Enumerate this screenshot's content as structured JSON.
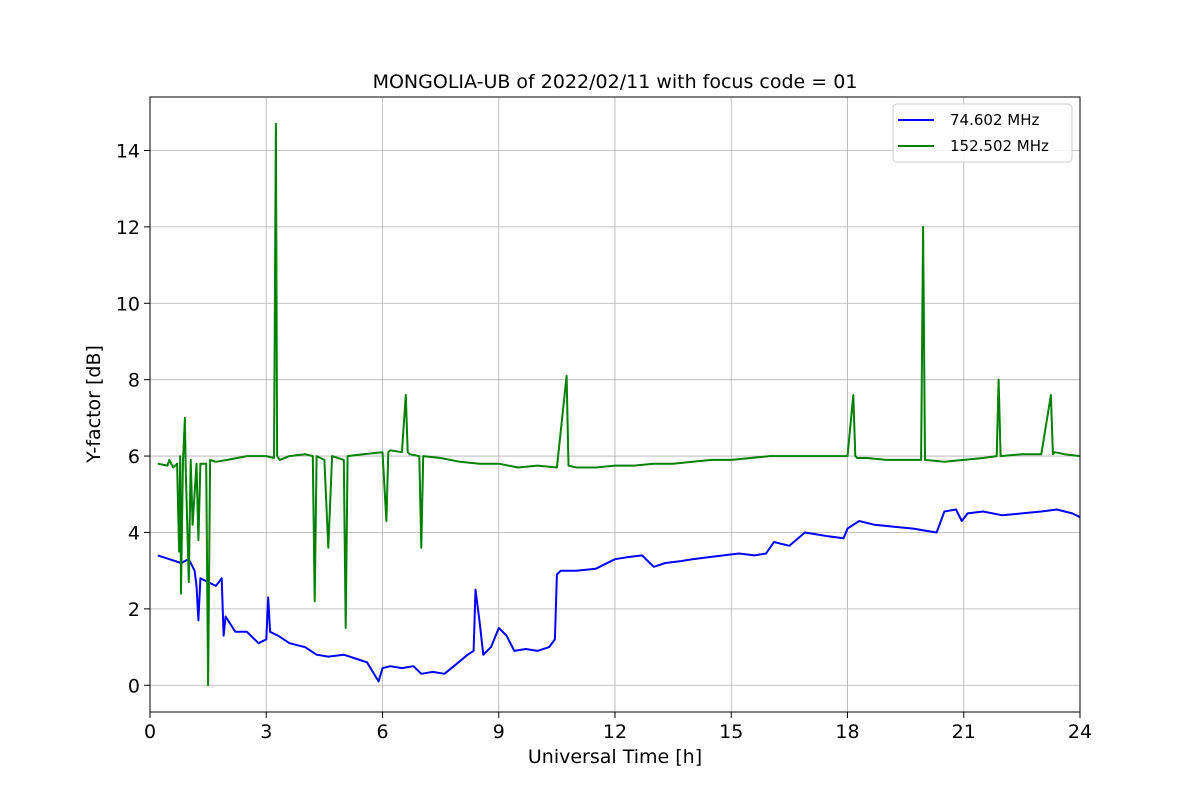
{
  "chart_data": {
    "type": "line",
    "title": "MONGOLIA-UB of 2022/02/11 with focus code = 01",
    "xlabel": "Universal Time [h]",
    "ylabel": "Y-factor [dB]",
    "xlim": [
      0,
      24
    ],
    "ylim": [
      -0.7,
      15.4
    ],
    "xticks": [
      0,
      3,
      6,
      9,
      12,
      15,
      18,
      21,
      24
    ],
    "xtick_labels": [
      "0",
      "3",
      "6",
      "9",
      "12",
      "15",
      "18",
      "21",
      "24"
    ],
    "yticks": [
      0,
      2,
      4,
      6,
      8,
      10,
      12,
      14
    ],
    "ytick_labels": [
      "0",
      "2",
      "4",
      "6",
      "8",
      "10",
      "12",
      "14"
    ],
    "grid": true,
    "legend_position": "top-right",
    "series": [
      {
        "name": " 74.602 MHz",
        "color": "#0000ff",
        "x": [
          0.2,
          0.5,
          0.8,
          1.0,
          1.15,
          1.2,
          1.25,
          1.3,
          1.5,
          1.7,
          1.85,
          1.9,
          1.95,
          2.2,
          2.5,
          2.8,
          3.0,
          3.05,
          3.1,
          3.3,
          3.6,
          4.0,
          4.3,
          4.6,
          5.0,
          5.3,
          5.6,
          5.9,
          6.0,
          6.2,
          6.5,
          6.8,
          7.0,
          7.3,
          7.6,
          7.9,
          8.2,
          8.35,
          8.4,
          8.5,
          8.6,
          8.8,
          9.0,
          9.2,
          9.4,
          9.7,
          10.0,
          10.3,
          10.45,
          10.5,
          10.6,
          11.0,
          11.5,
          12.0,
          12.3,
          12.7,
          13.0,
          13.3,
          13.7,
          14.0,
          14.4,
          14.8,
          15.2,
          15.6,
          15.9,
          16.1,
          16.5,
          16.9,
          17.2,
          17.5,
          17.9,
          18.0,
          18.3,
          18.7,
          19.2,
          19.7,
          20.0,
          20.3,
          20.5,
          20.8,
          20.95,
          21.1,
          21.5,
          22.0,
          22.5,
          23.0,
          23.4,
          23.8,
          24.0
        ],
        "y": [
          3.4,
          3.3,
          3.2,
          3.3,
          3.0,
          2.6,
          1.7,
          2.8,
          2.7,
          2.6,
          2.8,
          1.3,
          1.8,
          1.4,
          1.4,
          1.1,
          1.2,
          2.3,
          1.4,
          1.3,
          1.1,
          1.0,
          0.8,
          0.75,
          0.8,
          0.7,
          0.6,
          0.1,
          0.45,
          0.5,
          0.45,
          0.5,
          0.3,
          0.35,
          0.3,
          0.55,
          0.8,
          0.9,
          2.5,
          1.7,
          0.8,
          1.0,
          1.5,
          1.3,
          0.9,
          0.95,
          0.9,
          1.0,
          1.2,
          2.9,
          3.0,
          3.0,
          3.05,
          3.3,
          3.35,
          3.4,
          3.1,
          3.2,
          3.25,
          3.3,
          3.35,
          3.4,
          3.45,
          3.4,
          3.45,
          3.75,
          3.65,
          4.0,
          3.95,
          3.9,
          3.85,
          4.1,
          4.3,
          4.2,
          4.15,
          4.1,
          4.05,
          4.0,
          4.55,
          4.6,
          4.3,
          4.5,
          4.55,
          4.45,
          4.5,
          4.55,
          4.6,
          4.5,
          4.4
        ]
      },
      {
        "name": "152.502 MHz",
        "color": "#008000",
        "x": [
          0.2,
          0.45,
          0.5,
          0.6,
          0.7,
          0.75,
          0.78,
          0.8,
          0.85,
          0.9,
          0.92,
          1.0,
          1.05,
          1.1,
          1.2,
          1.25,
          1.3,
          1.45,
          1.5,
          1.55,
          1.7,
          2.0,
          2.5,
          3.0,
          3.2,
          3.25,
          3.28,
          3.35,
          3.6,
          4.0,
          4.2,
          4.25,
          4.3,
          4.5,
          4.6,
          4.7,
          5.0,
          5.05,
          5.1,
          5.5,
          6.0,
          6.1,
          6.15,
          6.2,
          6.5,
          6.6,
          6.65,
          6.7,
          6.95,
          7.0,
          7.05,
          7.5,
          8.0,
          8.5,
          9.0,
          9.5,
          10.0,
          10.5,
          10.75,
          10.8,
          11.0,
          11.5,
          12.0,
          12.5,
          13.0,
          13.5,
          14.0,
          14.5,
          15.0,
          15.5,
          16.0,
          16.5,
          17.0,
          17.5,
          18.0,
          18.15,
          18.2,
          18.25,
          18.5,
          19.0,
          19.5,
          19.9,
          19.95,
          20.0,
          20.5,
          21.0,
          21.5,
          21.85,
          21.9,
          21.95,
          22.5,
          23.0,
          23.25,
          23.3,
          23.35,
          23.6,
          24.0
        ],
        "y": [
          5.8,
          5.75,
          5.9,
          5.7,
          5.8,
          3.5,
          6.0,
          2.4,
          5.8,
          7.0,
          5.7,
          2.7,
          5.9,
          4.2,
          5.8,
          3.8,
          5.8,
          5.8,
          0.0,
          5.9,
          5.85,
          5.9,
          6.0,
          6.0,
          5.95,
          14.7,
          6.0,
          5.9,
          6.0,
          6.05,
          6.0,
          2.2,
          6.0,
          5.9,
          3.6,
          6.0,
          5.9,
          1.5,
          6.0,
          6.05,
          6.1,
          4.3,
          6.1,
          6.15,
          6.1,
          7.6,
          6.1,
          6.05,
          6.0,
          3.6,
          6.0,
          5.95,
          5.85,
          5.8,
          5.8,
          5.7,
          5.75,
          5.7,
          8.1,
          5.75,
          5.7,
          5.7,
          5.75,
          5.75,
          5.8,
          5.8,
          5.85,
          5.9,
          5.9,
          5.95,
          6.0,
          6.0,
          6.0,
          6.0,
          6.0,
          7.6,
          6.0,
          5.95,
          5.95,
          5.9,
          5.9,
          5.9,
          12.0,
          5.9,
          5.85,
          5.9,
          5.95,
          6.0,
          8.0,
          6.0,
          6.05,
          6.05,
          7.6,
          6.05,
          6.1,
          6.05,
          6.0
        ]
      }
    ]
  }
}
